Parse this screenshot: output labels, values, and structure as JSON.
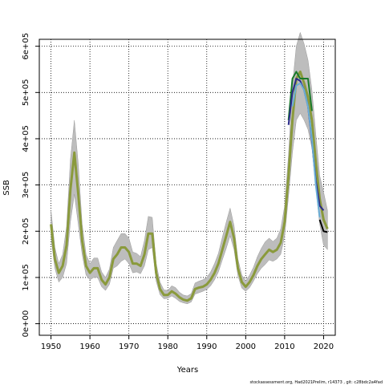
{
  "chart_data": {
    "type": "line",
    "xlabel": "Years",
    "ylabel": "SSB",
    "xlim": [
      1947,
      2023
    ],
    "ylim": [
      -25000,
      615000
    ],
    "x_ticks": [
      1950,
      1960,
      1970,
      1980,
      1990,
      2000,
      2010,
      2020
    ],
    "x_tick_labels": [
      "1950",
      "1960",
      "1970",
      "1980",
      "1990",
      "2000",
      "2010",
      "2020"
    ],
    "y_ticks": [
      0,
      100000,
      200000,
      300000,
      400000,
      500000,
      600000
    ],
    "y_tick_labels": [
      "0e+00",
      "1e+05",
      "2e+05",
      "3e+05",
      "4e+05",
      "5e+05",
      "6e+05"
    ],
    "grid": true,
    "credit": "stockassessment.org, Had2021Prelim, r14373 , git: c28bdc2a4fad",
    "colors": {
      "band": "#bdbdbd",
      "main": "#8a9a3c",
      "green": "#1a7a2a",
      "navy": "#2a2a8a",
      "lightblue": "#6aaed6",
      "black": "#000000"
    },
    "x": [
      1950,
      1951,
      1952,
      1953,
      1954,
      1955,
      1956,
      1957,
      1958,
      1959,
      1960,
      1961,
      1962,
      1963,
      1964,
      1965,
      1966,
      1967,
      1968,
      1969,
      1970,
      1971,
      1972,
      1973,
      1974,
      1975,
      1976,
      1977,
      1978,
      1979,
      1980,
      1981,
      1982,
      1983,
      1984,
      1985,
      1986,
      1987,
      1988,
      1989,
      1990,
      1991,
      1992,
      1993,
      1994,
      1995,
      1996,
      1997,
      1998,
      1999,
      2000,
      2001,
      2002,
      2003,
      2004,
      2005,
      2006,
      2007,
      2008,
      2009,
      2010,
      2011,
      2012,
      2013,
      2014,
      2015,
      2016,
      2017,
      2018,
      2019,
      2020,
      2021
    ],
    "ssb": [
      215000,
      140000,
      110000,
      125000,
      170000,
      290000,
      370000,
      280000,
      180000,
      125000,
      110000,
      120000,
      120000,
      95000,
      85000,
      100000,
      140000,
      150000,
      165000,
      165000,
      155000,
      130000,
      130000,
      125000,
      150000,
      195000,
      195000,
      110000,
      75000,
      62000,
      62000,
      70000,
      65000,
      57000,
      52000,
      50000,
      55000,
      75000,
      78000,
      80000,
      85000,
      95000,
      110000,
      130000,
      160000,
      190000,
      220000,
      185000,
      120000,
      90000,
      80000,
      90000,
      105000,
      125000,
      140000,
      150000,
      160000,
      155000,
      160000,
      175000,
      220000,
      320000,
      440000,
      530000,
      545000,
      520000,
      490000,
      440000,
      350000,
      270000,
      225000,
      205000
    ],
    "ssb_low": [
      185000,
      120000,
      90000,
      100000,
      130000,
      220000,
      280000,
      215000,
      150000,
      105000,
      95000,
      100000,
      100000,
      80000,
      72000,
      85000,
      120000,
      125000,
      135000,
      140000,
      130000,
      110000,
      112000,
      108000,
      125000,
      160000,
      165000,
      92000,
      63000,
      54000,
      55000,
      60000,
      55000,
      48000,
      45000,
      43000,
      47000,
      64000,
      67000,
      70000,
      74000,
      82000,
      95000,
      112000,
      138000,
      163000,
      190000,
      160000,
      104000,
      77000,
      70000,
      78000,
      92000,
      108000,
      120000,
      128000,
      138000,
      135000,
      140000,
      150000,
      190000,
      275000,
      370000,
      440000,
      455000,
      440000,
      420000,
      380000,
      295000,
      215000,
      170000,
      160000
    ],
    "ssb_high": [
      245000,
      165000,
      130000,
      150000,
      210000,
      355000,
      440000,
      345000,
      215000,
      150000,
      130000,
      142000,
      142000,
      112000,
      100000,
      118000,
      165000,
      180000,
      195000,
      195000,
      185000,
      155000,
      152000,
      145000,
      180000,
      232000,
      230000,
      130000,
      90000,
      73000,
      72000,
      82000,
      78000,
      68000,
      62000,
      60000,
      65000,
      88000,
      92000,
      95000,
      100000,
      112000,
      130000,
      152000,
      187000,
      220000,
      250000,
      212000,
      140000,
      105000,
      93000,
      105000,
      122000,
      145000,
      163000,
      177000,
      185000,
      178000,
      185000,
      205000,
      255000,
      365000,
      515000,
      600000,
      630000,
      605000,
      570000,
      505000,
      410000,
      320000,
      285000,
      245000
    ],
    "series": [
      {
        "color_key": "green",
        "x": [
          2011,
          2012,
          2013,
          2014,
          2015,
          2016,
          2017
        ],
        "values": [
          440000,
          530000,
          545000,
          530000,
          530000,
          530000,
          460000
        ]
      },
      {
        "color_key": "navy",
        "x": [
          2011,
          2012,
          2013,
          2014,
          2015,
          2016,
          2017,
          2018,
          2019,
          2020
        ],
        "values": [
          430000,
          500000,
          530000,
          525000,
          505000,
          470000,
          395000,
          310000,
          255000,
          245000
        ]
      },
      {
        "color_key": "lightblue",
        "x": [
          2012,
          2013,
          2014,
          2015,
          2016,
          2017,
          2018,
          2019
        ],
        "values": [
          470000,
          515000,
          520000,
          505000,
          470000,
          400000,
          300000,
          230000
        ]
      },
      {
        "color_key": "black",
        "x": [
          2019,
          2020,
          2021
        ],
        "values": [
          225000,
          200000,
          198000
        ]
      }
    ]
  }
}
